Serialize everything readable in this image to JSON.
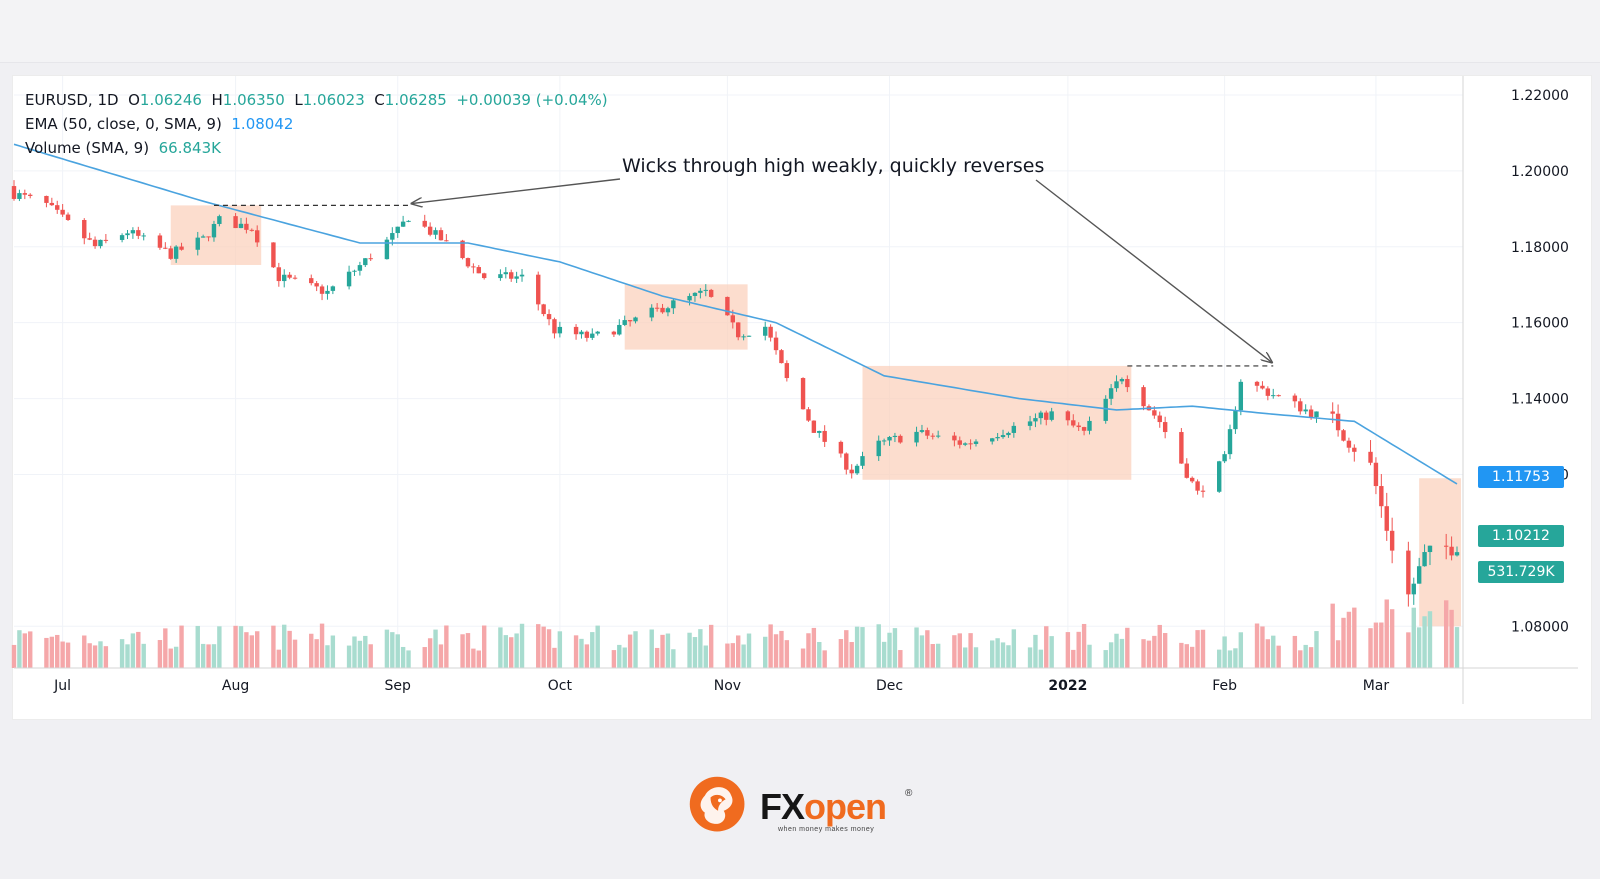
{
  "legend": {
    "symbol": "EURUSD, 1D",
    "o_label": "O",
    "o_value": "1.06246",
    "h_label": "H",
    "h_value": "1.06350",
    "l_label": "L",
    "l_value": "1.06023",
    "c_label": "C",
    "c_value": "1.06285",
    "change": "+0.00039 (+0.04%)",
    "ema_label": "EMA (50, close, 0, SMA, 9)",
    "ema_value": "1.08042",
    "volume_label": "Volume (SMA, 9)",
    "volume_value": "66.843K"
  },
  "annotation": "Wicks through high weakly, quickly reverses",
  "price_tags": {
    "ema": "1.11753",
    "last": "1.10212",
    "volume": "531.729K"
  },
  "colors": {
    "up": "#26a69a",
    "down": "#ef5350",
    "up_volume": "#a8dccf",
    "down_volume": "#f5a7a9",
    "ema_line": "#4aa3df",
    "range_box": "#fbd2bd",
    "ema_tag": "#2196f3",
    "last_tag": "#26a69a",
    "brand_orange": "#f06b1f"
  },
  "brand": {
    "name_fx": "FX",
    "name_open": "open",
    "registered": "®",
    "tagline": "when money makes money"
  },
  "chart_data": {
    "type": "candlestick",
    "symbol": "EURUSD",
    "timeframe": "1D",
    "y_ticks": [
      "1.22000",
      "1.20000",
      "1.18000",
      "1.16000",
      "1.14000",
      "1.12000",
      "1.08000"
    ],
    "ylim": [
      1.069,
      1.225
    ],
    "x_ticks": [
      "Jul",
      "Aug",
      "Sep",
      "Oct",
      "Nov",
      "Dec",
      "2022",
      "Feb",
      "Mar"
    ],
    "x_tick_dates": [
      "2021-07-01",
      "2021-08-02",
      "2021-09-01",
      "2021-10-01",
      "2021-11-01",
      "2021-12-01",
      "2022-01-03",
      "2022-02-01",
      "2022-03-01"
    ],
    "xlim": [
      "2021-06-22",
      "2022-03-16"
    ],
    "price_anchors": [
      [
        "2021-06-22",
        1.194
      ],
      [
        "2021-06-28",
        1.191
      ],
      [
        "2021-07-07",
        1.18
      ],
      [
        "2021-07-13",
        1.184
      ],
      [
        "2021-07-21",
        1.178
      ],
      [
        "2021-07-27",
        1.182
      ],
      [
        "2021-07-30",
        1.187
      ],
      [
        "2021-08-05",
        1.185
      ],
      [
        "2021-08-10",
        1.172
      ],
      [
        "2021-08-19",
        1.168
      ],
      [
        "2021-08-25",
        1.175
      ],
      [
        "2021-09-01",
        1.184
      ],
      [
        "2021-09-03",
        1.188
      ],
      [
        "2021-09-09",
        1.182
      ],
      [
        "2021-09-17",
        1.172
      ],
      [
        "2021-09-24",
        1.172
      ],
      [
        "2021-09-30",
        1.158
      ],
      [
        "2021-10-07",
        1.156
      ],
      [
        "2021-10-14",
        1.16
      ],
      [
        "2021-10-20",
        1.164
      ],
      [
        "2021-10-28",
        1.168
      ],
      [
        "2021-11-03",
        1.157
      ],
      [
        "2021-11-08",
        1.159
      ],
      [
        "2021-11-12",
        1.145
      ],
      [
        "2021-11-17",
        1.132
      ],
      [
        "2021-11-24",
        1.121
      ],
      [
        "2021-11-29",
        1.128
      ],
      [
        "2021-12-06",
        1.131
      ],
      [
        "2021-12-15",
        1.128
      ],
      [
        "2021-12-23",
        1.132
      ],
      [
        "2021-12-31",
        1.136
      ],
      [
        "2022-01-06",
        1.131
      ],
      [
        "2022-01-13",
        1.146
      ],
      [
        "2022-01-20",
        1.134
      ],
      [
        "2022-01-27",
        1.115
      ],
      [
        "2022-02-01",
        1.124
      ],
      [
        "2022-02-04",
        1.145
      ],
      [
        "2022-02-10",
        1.141
      ],
      [
        "2022-02-16",
        1.137
      ],
      [
        "2022-02-22",
        1.133
      ],
      [
        "2022-02-28",
        1.122
      ],
      [
        "2022-03-03",
        1.106
      ],
      [
        "2022-03-07",
        1.088
      ],
      [
        "2022-03-10",
        1.098
      ],
      [
        "2022-03-16",
        1.102
      ]
    ],
    "ema_anchors": [
      [
        "2021-06-22",
        1.207
      ],
      [
        "2021-07-27",
        1.192
      ],
      [
        "2021-08-25",
        1.181
      ],
      [
        "2021-09-14",
        1.181
      ],
      [
        "2021-10-01",
        1.176
      ],
      [
        "2021-10-20",
        1.167
      ],
      [
        "2021-11-10",
        1.16
      ],
      [
        "2021-11-30",
        1.146
      ],
      [
        "2021-12-25",
        1.14
      ],
      [
        "2022-01-12",
        1.137
      ],
      [
        "2022-01-26",
        1.138
      ],
      [
        "2022-02-09",
        1.136
      ],
      [
        "2022-02-25",
        1.134
      ],
      [
        "2022-03-16",
        1.1175
      ]
    ],
    "highlight_ranges": [
      {
        "from": "2021-07-21",
        "to": "2021-08-06",
        "high": 1.1909,
        "low": 1.1752
      },
      {
        "from": "2021-10-13",
        "to": "2021-11-04",
        "high": 1.1701,
        "low": 1.1529
      },
      {
        "from": "2021-11-26",
        "to": "2022-01-14",
        "high": 1.1486,
        "low": 1.1186
      },
      {
        "from": "2022-03-09",
        "to": "2022-03-16",
        "high": 1.119,
        "low": 1.08
      }
    ],
    "resistance_lines": [
      {
        "from": "2021-07-29",
        "to": "2021-09-03",
        "price": 1.1909
      },
      {
        "from": "2022-01-14",
        "to": "2022-02-10",
        "price": 1.1486
      }
    ],
    "volume_ylim": [
      0,
      160000
    ],
    "series_names": [
      "EURUSD",
      "EMA (50, close, 0, SMA, 9)",
      "Volume (SMA, 9)"
    ]
  }
}
